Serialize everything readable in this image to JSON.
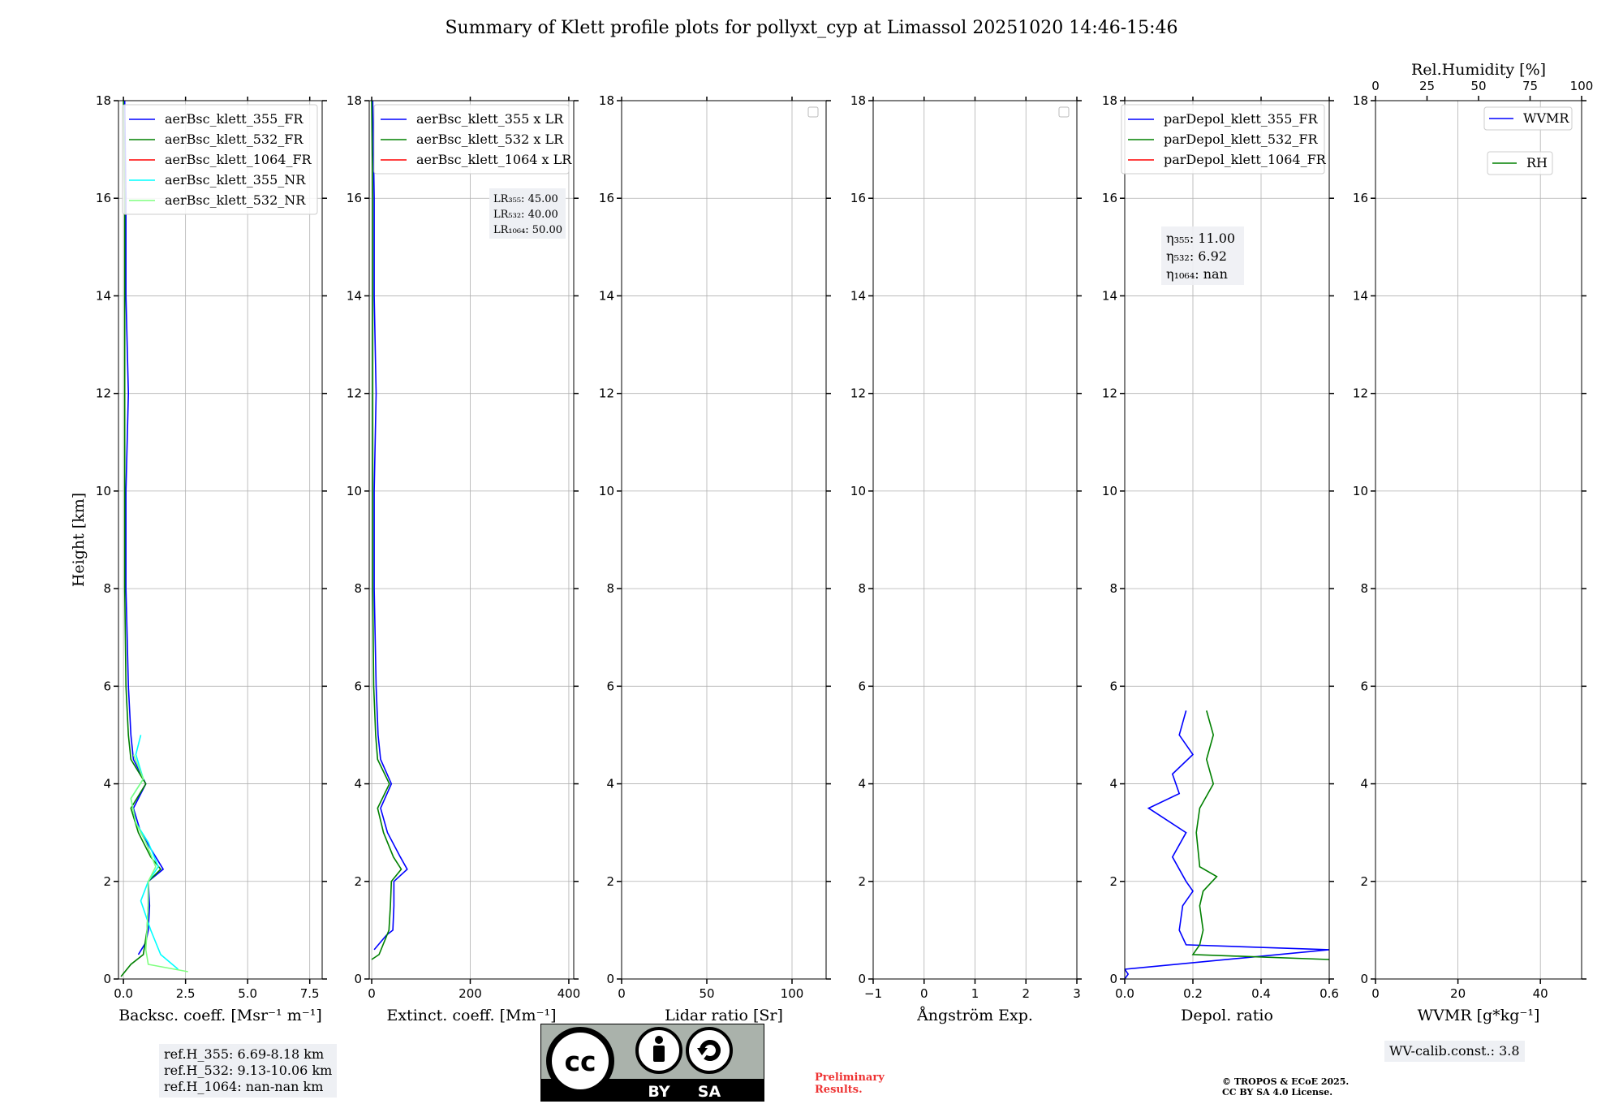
{
  "title": "Summary of Klett profile plots for pollyxt_cyp at Limassol 20251020 14:46-15:46",
  "chart_data": [
    {
      "type": "line",
      "panel": "backscatter",
      "xlabel": "Backsc. coeff. [Msr⁻¹ m⁻¹]",
      "ylabel": "Height [km]",
      "xlim": [
        -0.2,
        8.0
      ],
      "ylim": [
        0,
        18
      ],
      "xticks": [
        0.0,
        2.5,
        5.0,
        7.5
      ],
      "xtick_labels": [
        "0.0",
        "2.5",
        "5.0",
        "7.5"
      ],
      "yticks": [
        0,
        2,
        4,
        6,
        8,
        10,
        12,
        14,
        16,
        18
      ],
      "legend_location": "upper right",
      "series": [
        {
          "name": "aerBsc_klett_355_FR",
          "color": "#0000ff",
          "profile": [
            [
              0.6,
              0.5
            ],
            [
              0.9,
              0.75
            ],
            [
              1.0,
              1.0
            ],
            [
              1.05,
              1.5
            ],
            [
              1.0,
              2.0
            ],
            [
              1.6,
              2.25
            ],
            [
              1.3,
              2.5
            ],
            [
              0.7,
              3.0
            ],
            [
              0.4,
              3.5
            ],
            [
              0.9,
              4.0
            ],
            [
              0.4,
              4.5
            ],
            [
              0.3,
              5.0
            ],
            [
              0.2,
              6.0
            ],
            [
              0.1,
              8.0
            ],
            [
              0.1,
              10.0
            ],
            [
              0.2,
              12.0
            ],
            [
              0.1,
              14.0
            ],
            [
              0.1,
              16.0
            ],
            [
              0.05,
              18.0
            ]
          ]
        },
        {
          "name": "aerBsc_klett_532_FR",
          "color": "#008000",
          "profile": [
            [
              -0.1,
              0.05
            ],
            [
              0.3,
              0.3
            ],
            [
              0.8,
              0.5
            ],
            [
              0.95,
              1.0
            ],
            [
              1.0,
              1.5
            ],
            [
              1.0,
              2.0
            ],
            [
              1.5,
              2.25
            ],
            [
              1.1,
              2.5
            ],
            [
              0.6,
              3.0
            ],
            [
              0.3,
              3.5
            ],
            [
              0.9,
              4.0
            ],
            [
              0.3,
              4.5
            ],
            [
              0.2,
              5.0
            ],
            [
              0.1,
              6.0
            ],
            [
              0.05,
              8.0
            ],
            [
              0.05,
              10.0
            ],
            [
              0.05,
              12.0
            ],
            [
              0.05,
              14.0
            ],
            [
              0.05,
              16.0
            ],
            [
              0.0,
              18.0
            ]
          ]
        },
        {
          "name": "aerBsc_klett_1064_FR",
          "color": "#ff0000",
          "profile": []
        },
        {
          "name": "aerBsc_klett_355_NR",
          "color": "#00ffff",
          "profile": [
            [
              2.2,
              0.2
            ],
            [
              1.5,
              0.5
            ],
            [
              1.1,
              1.0
            ],
            [
              0.7,
              1.6
            ],
            [
              1.0,
              2.0
            ],
            [
              1.4,
              2.3
            ],
            [
              1.0,
              2.8
            ],
            [
              0.5,
              3.2
            ],
            [
              0.3,
              3.7
            ],
            [
              0.8,
              4.1
            ],
            [
              0.5,
              4.6
            ],
            [
              0.7,
              5.0
            ]
          ]
        },
        {
          "name": "aerBsc_klett_532_NR",
          "color": "#7fff7f",
          "profile": [
            [
              2.6,
              0.15
            ],
            [
              1.0,
              0.3
            ],
            [
              0.9,
              0.6
            ],
            [
              0.95,
              1.0
            ],
            [
              1.0,
              1.5
            ],
            [
              1.0,
              2.0
            ],
            [
              1.3,
              2.3
            ],
            [
              0.9,
              2.8
            ],
            [
              0.5,
              3.2
            ],
            [
              0.3,
              3.7
            ],
            [
              0.8,
              4.1
            ],
            [
              0.4,
              4.6
            ]
          ]
        }
      ]
    },
    {
      "type": "line",
      "panel": "extinction",
      "xlabel": "Extinct. coeff. [Mm⁻¹]",
      "xlim": [
        -5,
        410
      ],
      "ylim": [
        0,
        18
      ],
      "xticks": [
        0,
        200,
        400
      ],
      "xtick_labels": [
        "0",
        "200",
        "400"
      ],
      "yticks": [
        0,
        2,
        4,
        6,
        8,
        10,
        12,
        14,
        16,
        18
      ],
      "legend_location": "upper right",
      "lidar_ratios": [
        "LR₃₅₅: 45.00",
        "LR₅₃₂: 40.00",
        "LR₁₀₆₄: 50.00"
      ],
      "series": [
        {
          "name": "aerBsc_klett_355 x LR",
          "color": "#0000ff",
          "profile": [
            [
              5,
              0.6
            ],
            [
              30,
              0.9
            ],
            [
              43,
              1.0
            ],
            [
              45,
              1.5
            ],
            [
              45,
              2.0
            ],
            [
              72,
              2.25
            ],
            [
              58,
              2.5
            ],
            [
              32,
              3.0
            ],
            [
              18,
              3.5
            ],
            [
              40,
              4.0
            ],
            [
              18,
              4.5
            ],
            [
              13,
              5.0
            ],
            [
              9,
              6.0
            ],
            [
              5,
              8.0
            ],
            [
              5,
              10.0
            ],
            [
              9,
              12.0
            ],
            [
              5,
              14.0
            ],
            [
              5,
              16.0
            ],
            [
              2,
              18.0
            ]
          ]
        },
        {
          "name": "aerBsc_klett_532 x LR",
          "color": "#008000",
          "profile": [
            [
              0,
              0.4
            ],
            [
              15,
              0.5
            ],
            [
              35,
              1.0
            ],
            [
              38,
              1.5
            ],
            [
              40,
              2.0
            ],
            [
              60,
              2.25
            ],
            [
              44,
              2.5
            ],
            [
              24,
              3.0
            ],
            [
              12,
              3.5
            ],
            [
              36,
              4.0
            ],
            [
              12,
              4.5
            ],
            [
              8,
              5.0
            ],
            [
              4,
              6.0
            ],
            [
              2,
              8.0
            ],
            [
              2,
              10.0
            ],
            [
              2,
              12.0
            ],
            [
              2,
              14.0
            ],
            [
              2,
              16.0
            ],
            [
              0,
              18.0
            ]
          ]
        },
        {
          "name": "aerBsc_klett_1064 x LR",
          "color": "#ff0000",
          "profile": []
        }
      ]
    },
    {
      "type": "line",
      "panel": "lidar-ratio",
      "xlabel": "Lidar ratio [Sr]",
      "xlim": [
        0,
        120
      ],
      "ylim": [
        0,
        18
      ],
      "xticks": [
        0,
        50,
        100
      ],
      "xtick_labels": [
        "0",
        "50",
        "100"
      ],
      "yticks": [
        0,
        2,
        4,
        6,
        8,
        10,
        12,
        14,
        16,
        18
      ],
      "series": []
    },
    {
      "type": "line",
      "panel": "angstrom",
      "xlabel": "Ångström Exp.",
      "xlim": [
        -1,
        3
      ],
      "ylim": [
        0,
        18
      ],
      "xticks": [
        -1,
        0,
        1,
        2,
        3
      ],
      "xtick_labels": [
        "−1",
        "0",
        "1",
        "2",
        "3"
      ],
      "yticks": [
        0,
        2,
        4,
        6,
        8,
        10,
        12,
        14,
        16,
        18
      ],
      "series": []
    },
    {
      "type": "line",
      "panel": "depolarization",
      "xlabel": "Depol. ratio",
      "xlim": [
        0,
        0.6
      ],
      "ylim": [
        0,
        18
      ],
      "xticks": [
        0.0,
        0.2,
        0.4,
        0.6
      ],
      "xtick_labels": [
        "0.0",
        "0.2",
        "0.4",
        "0.6"
      ],
      "yticks": [
        0,
        2,
        4,
        6,
        8,
        10,
        12,
        14,
        16,
        18
      ],
      "legend_location": "upper right",
      "eta": [
        "η₃₅₅: 11.00",
        "η₅₃₂: 6.92",
        "η₁₀₆₄: nan"
      ],
      "series": [
        {
          "name": "parDepol_klett_355_FR",
          "color": "#0000ff",
          "profile": [
            [
              0.0,
              0.0
            ],
            [
              0.01,
              0.1
            ],
            [
              0.0,
              0.2
            ],
            [
              0.6,
              0.6
            ],
            [
              0.18,
              0.7
            ],
            [
              0.16,
              1.0
            ],
            [
              0.17,
              1.5
            ],
            [
              0.2,
              1.8
            ],
            [
              0.18,
              2.0
            ],
            [
              0.14,
              2.5
            ],
            [
              0.18,
              3.0
            ],
            [
              0.07,
              3.5
            ],
            [
              0.16,
              3.8
            ],
            [
              0.14,
              4.2
            ],
            [
              0.2,
              4.6
            ],
            [
              0.16,
              5.0
            ],
            [
              0.18,
              5.5
            ]
          ]
        },
        {
          "name": "parDepol_klett_532_FR",
          "color": "#008000",
          "profile": [
            [
              0.6,
              0.4
            ],
            [
              0.2,
              0.5
            ],
            [
              0.22,
              0.7
            ],
            [
              0.23,
              1.0
            ],
            [
              0.22,
              1.5
            ],
            [
              0.23,
              1.8
            ],
            [
              0.27,
              2.1
            ],
            [
              0.22,
              2.3
            ],
            [
              0.21,
              3.0
            ],
            [
              0.22,
              3.5
            ],
            [
              0.26,
              4.0
            ],
            [
              0.24,
              4.5
            ],
            [
              0.26,
              5.0
            ],
            [
              0.24,
              5.5
            ]
          ]
        },
        {
          "name": "parDepol_klett_1064_FR",
          "color": "#ff0000",
          "profile": []
        }
      ]
    },
    {
      "type": "line",
      "panel": "water-vapor",
      "xlabel": "WVMR [g*kg⁻¹]",
      "xlim": [
        0,
        50
      ],
      "ylim": [
        0,
        18
      ],
      "xticks": [
        0,
        20,
        40
      ],
      "xtick_labels": [
        "0",
        "20",
        "40"
      ],
      "yticks": [
        0,
        2,
        4,
        6,
        8,
        10,
        12,
        14,
        16,
        18
      ],
      "secondary_xlabel": "Rel.Humidity [%]",
      "secondary_xlim": [
        0,
        100
      ],
      "secondary_xticks": [
        0,
        25,
        50,
        75,
        100
      ],
      "secondary_xtick_labels": [
        "0",
        "25",
        "50",
        "75",
        "100"
      ],
      "series": [
        {
          "name": "WVMR",
          "color": "#0000ff",
          "profile": []
        },
        {
          "name": "RH",
          "color": "#008000",
          "profile": []
        }
      ]
    }
  ],
  "reference_heights": [
    "ref.H_355: 6.69-8.18 km",
    "ref.H_532: 9.13-10.06 km",
    "ref.H_1064: nan-nan km"
  ],
  "wv_calibration": "WV-calib.const.: 3.8",
  "license_logo": {
    "left": "BY",
    "right": "SA"
  },
  "preliminary": [
    "Preliminary",
    "Results."
  ],
  "copyright": [
    "© TROPOS & ECoE 2025.",
    "CC BY SA 4.0 License."
  ]
}
